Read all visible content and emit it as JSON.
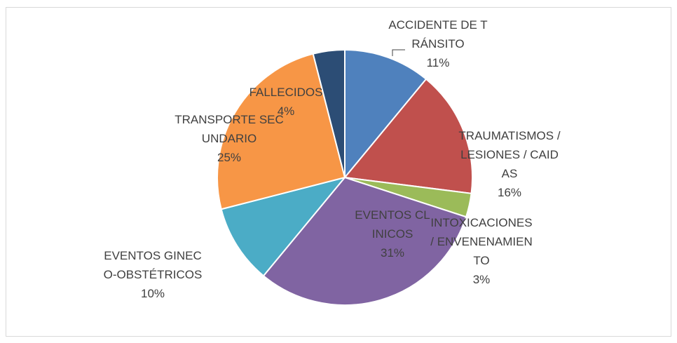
{
  "chart_data": {
    "type": "pie",
    "categories": [
      "ACCIDENTE DE TRÁNSITO",
      "TRAUMATISMOS / LESIONES / CAIDAS",
      "INTOXICACIONES / ENVENENAMIENTO",
      "EVENTOS CLINICOS",
      "EVENTOS GINECO-OBSTÉTRICOS",
      "TRANSPORTE SECUNDARIO",
      "FALLECIDOS"
    ],
    "values": [
      11,
      16,
      3,
      31,
      10,
      25,
      4
    ],
    "value_labels": [
      "11%",
      "16%",
      "3%",
      "31%",
      "10%",
      "25%",
      "4%"
    ],
    "colors": [
      "#4f81bd",
      "#c0504d",
      "#9bbb59",
      "#8064a2",
      "#4bacc6",
      "#f79646",
      "#2c4d75"
    ]
  }
}
